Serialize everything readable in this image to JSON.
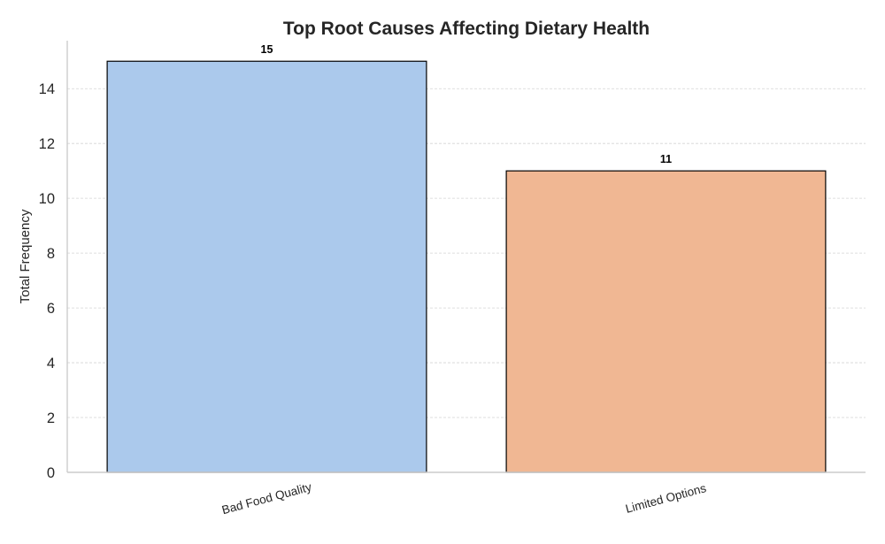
{
  "chart_data": {
    "type": "bar",
    "title": "Top Root Causes Affecting Dietary Health",
    "xlabel": "",
    "ylabel": "Total Frequency",
    "categories": [
      "Bad Food Quality",
      "Limited Options"
    ],
    "values": [
      15,
      11
    ],
    "data_labels": [
      "15",
      "11"
    ],
    "colors": [
      "#abc9ec",
      "#f0b793"
    ],
    "ylim": [
      0,
      15.75
    ],
    "yticks": [
      0,
      2,
      4,
      6,
      8,
      10,
      12,
      14
    ],
    "ytick_labels": [
      "0",
      "2",
      "4",
      "6",
      "8",
      "10",
      "12",
      "14"
    ],
    "grid": "horizontal dashed",
    "legend": "none"
  }
}
